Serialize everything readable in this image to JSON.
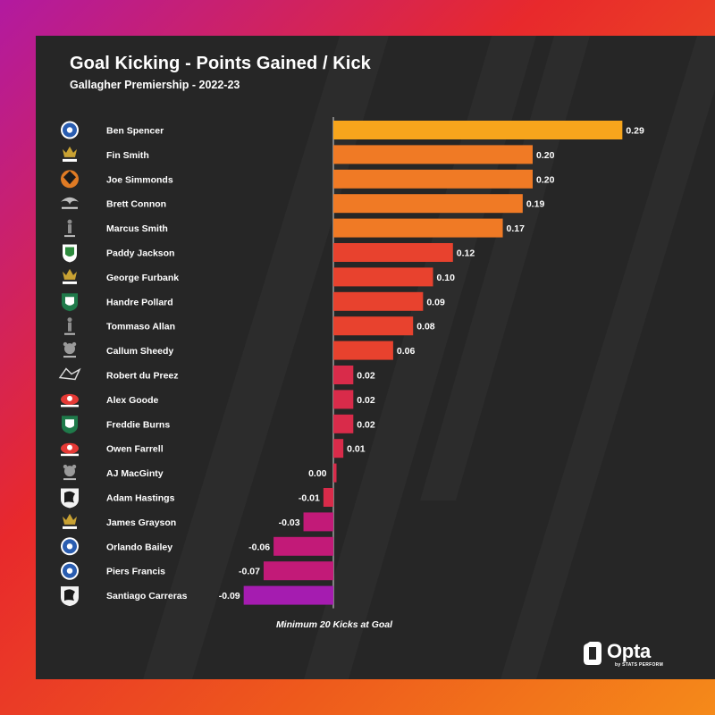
{
  "header": {
    "title": "Goal Kicking - Points Gained / Kick",
    "subtitle": "Gallagher Premiership - 2022-23"
  },
  "footnote": "Minimum 20 Kicks at Goal",
  "brand": {
    "name": "Opta",
    "tagline": "by STATS PERFORM",
    "icon": "opta-logo-icon"
  },
  "colors": {
    "background_card": "#262626",
    "bar_high": "#f7a51c",
    "bar_mid": "#f07a25",
    "bar_low": "#e8422e",
    "bar_near_zero": "#d92b4a",
    "bar_negative": "#c21a78",
    "bar_most_negative": "#a51cb0"
  },
  "chart_data": {
    "type": "bar",
    "orientation": "horizontal",
    "categories": [
      "Ben Spencer",
      "Fin Smith",
      "Joe Simmonds",
      "Brett Connon",
      "Marcus Smith",
      "Paddy Jackson",
      "George Furbank",
      "Handre Pollard",
      "Tommaso Allan",
      "Callum Sheedy",
      "Robert du Preez",
      "Alex Goode",
      "Freddie Burns",
      "Owen Farrell",
      "AJ MacGinty",
      "Adam Hastings",
      "James Grayson",
      "Orlando Bailey",
      "Piers Francis",
      "Santiago Carreras"
    ],
    "values": [
      0.29,
      0.2,
      0.2,
      0.19,
      0.17,
      0.12,
      0.1,
      0.09,
      0.08,
      0.06,
      0.02,
      0.02,
      0.02,
      0.01,
      0.0,
      -0.01,
      -0.03,
      -0.06,
      -0.07,
      -0.09
    ],
    "value_labels": [
      "0.29",
      "0.20",
      "0.20",
      "0.19",
      "0.17",
      "0.12",
      "0.10",
      "0.09",
      "0.08",
      "0.06",
      "0.02",
      "0.02",
      "0.02",
      "0.01",
      "0.00",
      "-0.01",
      "-0.03",
      "-0.06",
      "-0.07",
      "-0.09"
    ],
    "club_icons": [
      "bath-rugby-crest-icon",
      "northampton-saints-crest-icon",
      "exeter-chiefs-crest-icon",
      "newcastle-falcons-crest-icon",
      "harlequins-crest-icon",
      "london-irish-crest-icon",
      "northampton-saints-crest-icon",
      "leicester-tigers-crest-icon",
      "harlequins-crest-icon",
      "bristol-bears-crest-icon",
      "sale-sharks-crest-icon",
      "saracens-crest-icon",
      "leicester-tigers-crest-icon",
      "saracens-crest-icon",
      "bristol-bears-crest-icon",
      "gloucester-rugby-crest-icon",
      "northampton-saints-crest-icon",
      "bath-rugby-crest-icon",
      "bath-rugby-crest-icon",
      "gloucester-rugby-crest-icon"
    ],
    "xlim": [
      -0.12,
      0.33
    ],
    "grid": false,
    "legend": "none",
    "zero_line": true
  }
}
